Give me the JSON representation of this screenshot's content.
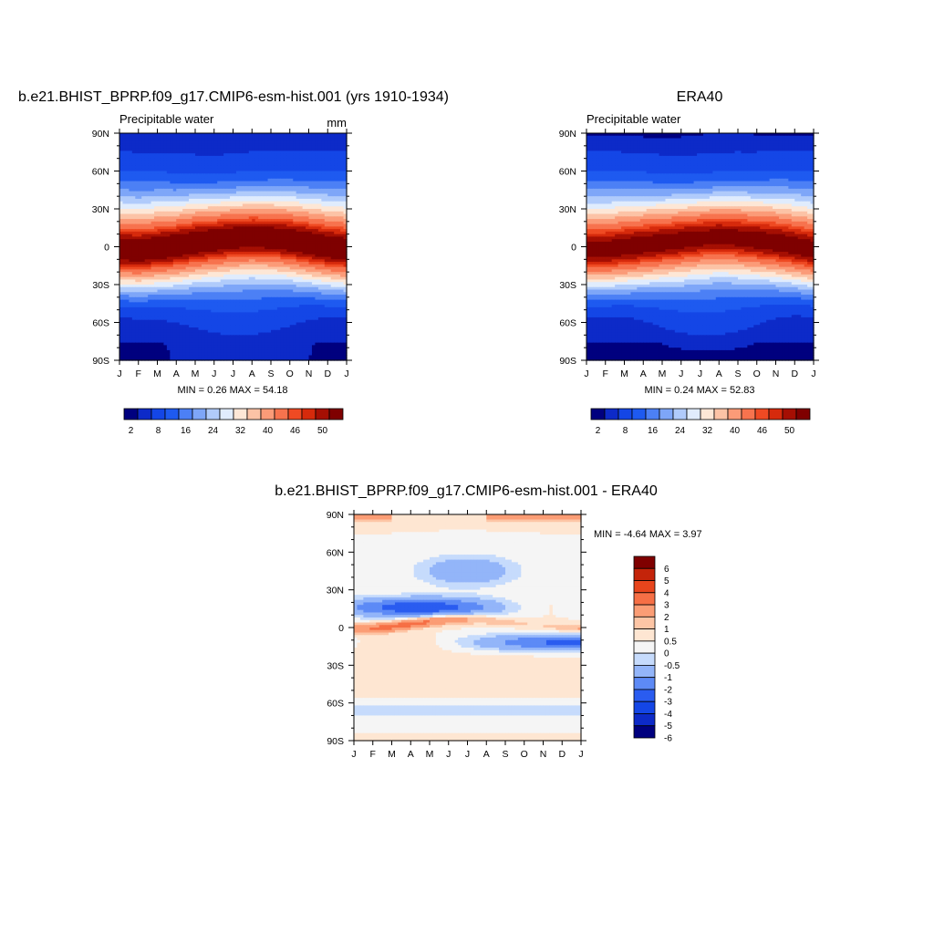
{
  "panels": [
    {
      "id": "model",
      "title": "b.e21.BHIST_BPRP.f09_g17.CMIP6-esm-hist.001 (yrs 1910-1934)",
      "left_label": "Precipitable water",
      "right_label": "mm",
      "stats": "MIN =   0.26 MAX =  54.18",
      "colorbar_labels": [
        "2",
        "8",
        "16",
        "24",
        "32",
        "40",
        "46",
        "50"
      ]
    },
    {
      "id": "obs",
      "title": "ERA40",
      "left_label": "Precipitable water",
      "right_label": "",
      "stats": "MIN =   0.24 MAX =  52.83",
      "colorbar_labels": [
        "2",
        "8",
        "16",
        "24",
        "32",
        "40",
        "46",
        "50"
      ]
    },
    {
      "id": "diff",
      "title": "b.e21.BHIST_BPRP.f09_g17.CMIP6-esm-hist.001 - ERA40",
      "left_label": "",
      "right_label": "",
      "stats": "MIN =  -4.64 MAX =   3.97",
      "colorbar_labels": [
        "6",
        "5",
        "4",
        "3",
        "2",
        "1",
        "0.5",
        "0",
        "-0.5",
        "-1",
        "-2",
        "-3",
        "-4",
        "-5",
        "-6"
      ]
    }
  ],
  "axes": {
    "x_ticks": [
      "J",
      "F",
      "M",
      "A",
      "M",
      "J",
      "J",
      "A",
      "S",
      "O",
      "N",
      "D",
      "J"
    ],
    "y_ticks": [
      "90N",
      "60N",
      "30N",
      "0",
      "30S",
      "60S",
      "90S"
    ]
  },
  "chart_data": [
    {
      "type": "heatmap",
      "title": "b.e21.BHIST_BPRP.f09_g17.CMIP6-esm-hist.001 (yrs 1910-1934)",
      "x": [
        "J",
        "F",
        "M",
        "A",
        "M",
        "J",
        "J",
        "A",
        "S",
        "O",
        "N",
        "D",
        "J"
      ],
      "y": [
        90,
        60,
        30,
        0,
        -30,
        -60,
        -90
      ],
      "units": "mm",
      "min": 0.26,
      "max": 54.18,
      "peak_lat_by_month": [
        -3,
        -4,
        -2,
        0,
        3,
        5,
        7,
        8,
        7,
        5,
        2,
        -1,
        -3
      ],
      "levels": [
        2,
        4,
        8,
        12,
        16,
        20,
        24,
        28,
        32,
        36,
        40,
        44,
        46,
        48,
        50
      ],
      "colors": [
        "#00007f",
        "#0d2ac8",
        "#1446e6",
        "#1e5af0",
        "#4c80f5",
        "#7ea6f8",
        "#b0cbfb",
        "#e0ecfd",
        "#fde7d6",
        "#fcc3a6",
        "#fb9b78",
        "#f7734e",
        "#ef4a23",
        "#d62a0c",
        "#a50f03",
        "#7f0000"
      ]
    },
    {
      "type": "heatmap",
      "title": "ERA40",
      "x": [
        "J",
        "F",
        "M",
        "A",
        "M",
        "J",
        "J",
        "A",
        "S",
        "O",
        "N",
        "D",
        "J"
      ],
      "y": [
        90,
        60,
        30,
        0,
        -30,
        -60,
        -90
      ],
      "min": 0.24,
      "max": 52.83,
      "peak_lat_by_month": [
        -3,
        -3,
        -1,
        1,
        3,
        5,
        7,
        8,
        7,
        5,
        3,
        0,
        -3
      ],
      "levels": [
        2,
        4,
        8,
        12,
        16,
        20,
        24,
        28,
        32,
        36,
        40,
        44,
        46,
        48,
        50
      ],
      "colors": [
        "#00007f",
        "#0d2ac8",
        "#1446e6",
        "#1e5af0",
        "#4c80f5",
        "#7ea6f8",
        "#b0cbfb",
        "#e0ecfd",
        "#fde7d6",
        "#fcc3a6",
        "#fb9b78",
        "#f7734e",
        "#ef4a23",
        "#d62a0c",
        "#a50f03",
        "#7f0000"
      ]
    },
    {
      "type": "heatmap",
      "title": "b.e21.BHIST_BPRP.f09_g17.CMIP6-esm-hist.001 - ERA40",
      "x": [
        "J",
        "F",
        "M",
        "A",
        "M",
        "J",
        "J",
        "A",
        "S",
        "O",
        "N",
        "D",
        "J"
      ],
      "y": [
        90,
        60,
        30,
        0,
        -30,
        -60,
        -90
      ],
      "min": -4.64,
      "max": 3.97,
      "levels": [
        -6,
        -5,
        -4,
        -3,
        -2,
        -1,
        -0.5,
        0,
        0.5,
        1,
        2,
        3,
        4,
        5,
        6
      ],
      "colors": [
        "#00007f",
        "#0d2ac8",
        "#1446e6",
        "#2a5cf0",
        "#5d8af6",
        "#93b5f9",
        "#c6dbfc",
        "#f5f5f5",
        "#fee6d2",
        "#fdc5a5",
        "#fb9d75",
        "#f66f45",
        "#e8451c",
        "#c4240a",
        "#7f0000"
      ]
    }
  ]
}
